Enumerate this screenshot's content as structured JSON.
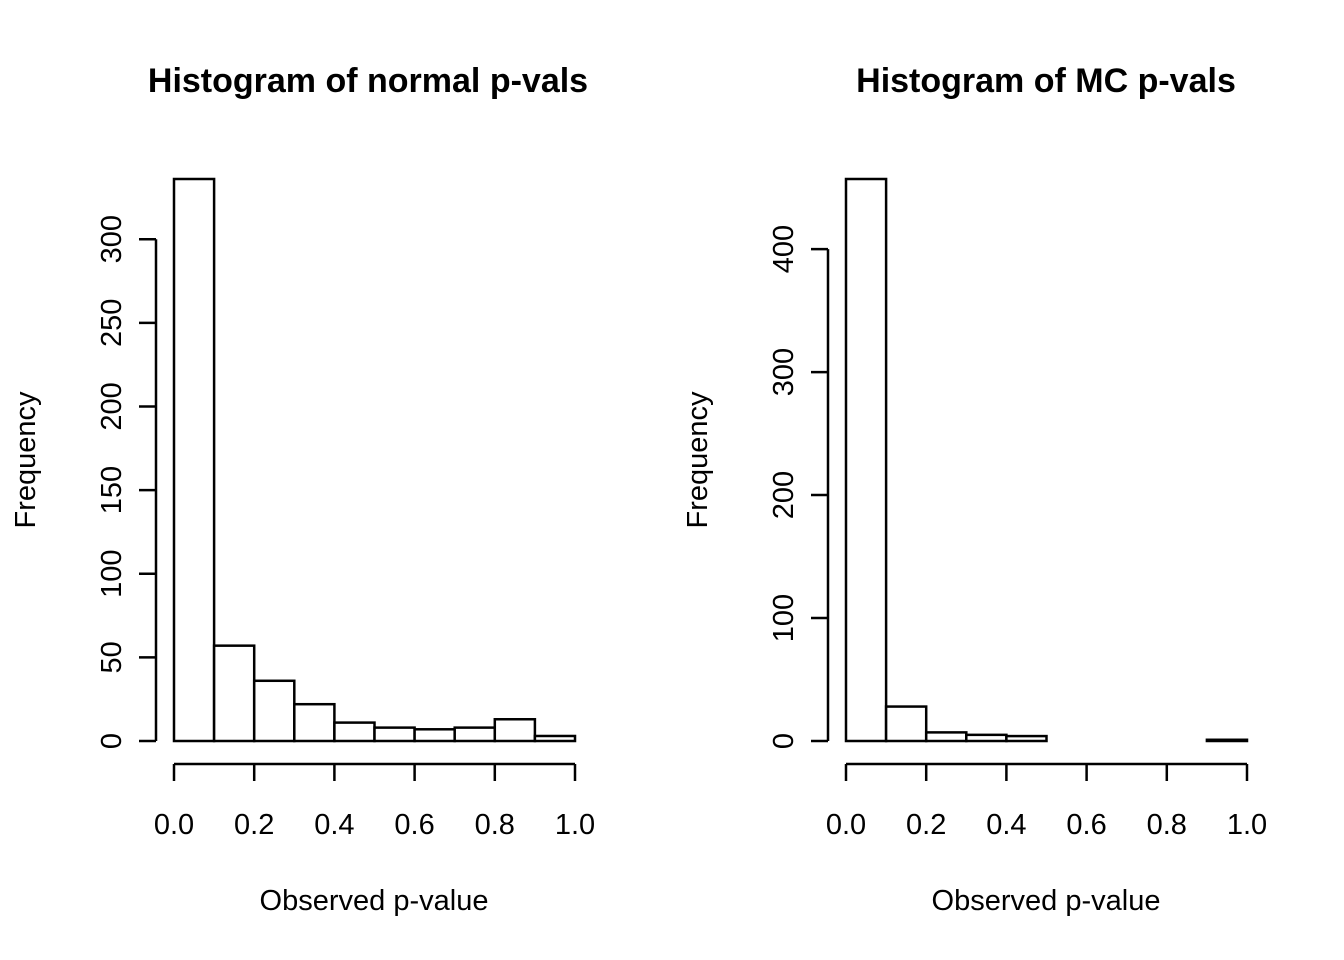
{
  "chart_data": [
    {
      "type": "bar",
      "title": "Histogram of normal p-vals",
      "xlabel": "Observed p-value",
      "ylabel": "Frequency",
      "bin_edges": [
        0.0,
        0.1,
        0.2,
        0.3,
        0.4,
        0.5,
        0.6,
        0.7,
        0.8,
        0.9,
        1.0
      ],
      "values": [
        336,
        57,
        36,
        22,
        11,
        8,
        7,
        8,
        13,
        3
      ],
      "xlim": [
        0,
        1
      ],
      "xticks": [
        "0.0",
        "0.2",
        "0.4",
        "0.6",
        "0.8",
        "1.0"
      ],
      "yticks": [
        "0",
        "50",
        "100",
        "150",
        "200",
        "250",
        "300"
      ],
      "ytick_values": [
        0,
        50,
        100,
        150,
        200,
        250,
        300
      ],
      "ylim": [
        0,
        336
      ],
      "grid": false
    },
    {
      "type": "bar",
      "title": "Histogram of MC p-vals",
      "xlabel": "Observed p-value",
      "ylabel": "Frequency",
      "bin_edges": [
        0.0,
        0.1,
        0.2,
        0.3,
        0.4,
        0.5,
        0.6,
        0.7,
        0.8,
        0.9,
        1.0
      ],
      "values": [
        457,
        28,
        7,
        5,
        4,
        0,
        0,
        0,
        0,
        1
      ],
      "xlim": [
        0,
        1
      ],
      "xticks": [
        "0.0",
        "0.2",
        "0.4",
        "0.6",
        "0.8",
        "1.0"
      ],
      "yticks": [
        "0",
        "100",
        "200",
        "300",
        "400"
      ],
      "ytick_values": [
        0,
        100,
        200,
        300,
        400
      ],
      "ylim": [
        0,
        457
      ],
      "grid": false
    }
  ]
}
